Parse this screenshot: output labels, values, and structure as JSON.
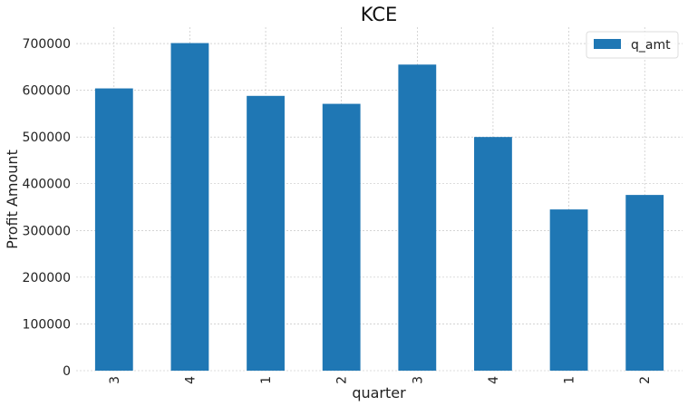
{
  "chart_data": {
    "type": "bar",
    "title": "KCE",
    "xlabel": "quarter",
    "ylabel": "Profit Amount",
    "categories": [
      "3",
      "4",
      "1",
      "2",
      "3",
      "4",
      "1",
      "2"
    ],
    "series": [
      {
        "name": "q_amt",
        "values": [
          604000,
          701000,
          588000,
          571000,
          655000,
          500000,
          345000,
          376000
        ],
        "color": "#1f77b4"
      }
    ],
    "ylim": [
      0,
      735000
    ],
    "yticks": [
      0,
      100000,
      200000,
      300000,
      400000,
      500000,
      600000,
      700000
    ],
    "ytick_labels": [
      "0",
      "100000",
      "200000",
      "300000",
      "400000",
      "500000",
      "600000",
      "700000"
    ],
    "grid": true,
    "legend_position": "top-right",
    "xtick_rotation": "vertical"
  }
}
